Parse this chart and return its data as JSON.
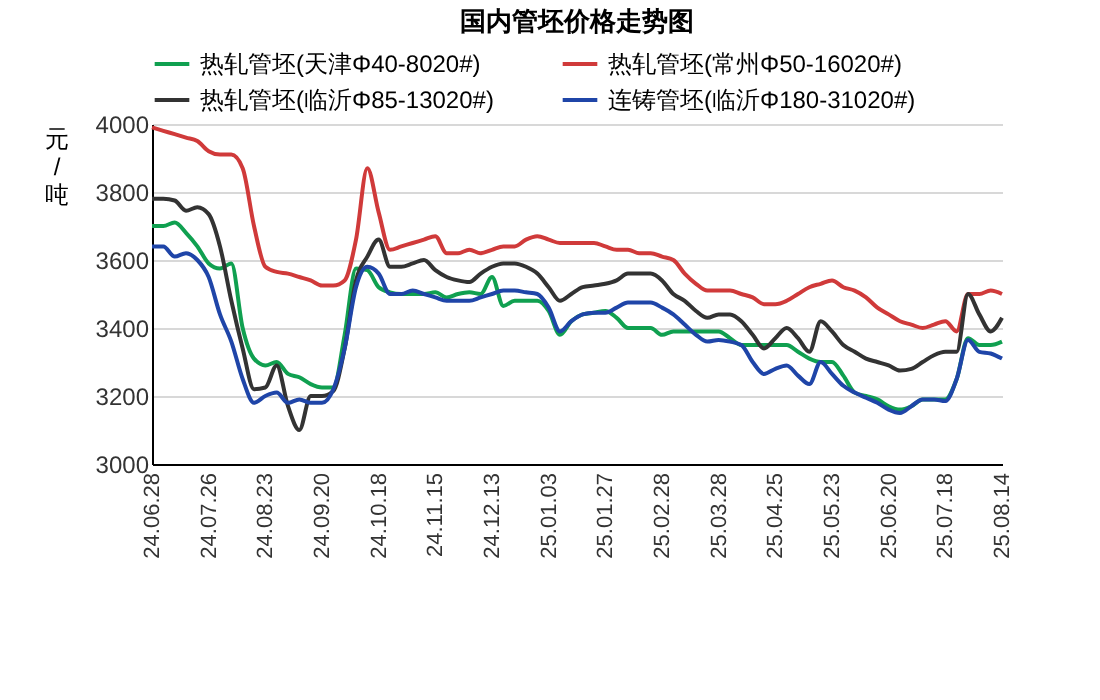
{
  "chart_data": {
    "type": "line",
    "title": "国内管坯价格走势图",
    "ylabel": "元/吨",
    "categories": [
      "24.06.28",
      null,
      null,
      null,
      null,
      "24.07.26",
      null,
      null,
      null,
      null,
      "24.08.23",
      null,
      null,
      null,
      null,
      "24.09.20",
      null,
      null,
      null,
      null,
      "24.10.18",
      null,
      null,
      null,
      null,
      "24.11.15",
      null,
      null,
      null,
      null,
      "24.12.13",
      null,
      null,
      null,
      null,
      "25.01.03",
      null,
      null,
      null,
      null,
      "25.01.27",
      null,
      null,
      null,
      null,
      "25.02.28",
      null,
      null,
      null,
      null,
      "25.03.28",
      null,
      null,
      null,
      null,
      "25.04.25",
      null,
      null,
      null,
      null,
      "25.05.23",
      null,
      null,
      null,
      null,
      "25.06.20",
      null,
      null,
      null,
      null,
      "25.07.18",
      null,
      null,
      null,
      null,
      "25.08.14"
    ],
    "series": [
      {
        "name": "热轧管坯(天津Φ40-8020#)",
        "color": "#10a050",
        "values": [
          3700,
          3700,
          3710,
          3680,
          3640,
          3590,
          3575,
          3590,
          3400,
          3310,
          3290,
          3300,
          3265,
          3255,
          3235,
          3225,
          3225,
          3380,
          3575,
          3570,
          3520,
          3505,
          3500,
          3500,
          3500,
          3505,
          3490,
          3500,
          3505,
          3500,
          3550,
          3465,
          3480,
          3480,
          3480,
          3450,
          3380,
          3420,
          3440,
          3445,
          3450,
          3430,
          3400,
          3400,
          3400,
          3380,
          3390,
          3390,
          3390,
          3390,
          3390,
          3370,
          3350,
          3350,
          3350,
          3350,
          3350,
          3330,
          3310,
          3300,
          3300,
          3260,
          3210,
          3200,
          3190,
          3170,
          3160,
          3170,
          3190,
          3190,
          3190,
          3250,
          3370,
          3350,
          3350,
          3360
        ]
      },
      {
        "name": "热轧管坯(常州Φ50-16020#)",
        "color": "#d03a3a",
        "values": [
          3990,
          3980,
          3970,
          3960,
          3950,
          3920,
          3910,
          3910,
          3870,
          3700,
          3580,
          3565,
          3560,
          3550,
          3540,
          3525,
          3525,
          3540,
          3660,
          3870,
          3740,
          3630,
          3640,
          3650,
          3660,
          3670,
          3620,
          3620,
          3630,
          3620,
          3630,
          3640,
          3640,
          3660,
          3670,
          3660,
          3650,
          3650,
          3650,
          3650,
          3640,
          3630,
          3630,
          3620,
          3620,
          3610,
          3600,
          3560,
          3530,
          3510,
          3510,
          3510,
          3500,
          3490,
          3470,
          3470,
          3480,
          3500,
          3520,
          3530,
          3540,
          3520,
          3510,
          3490,
          3460,
          3440,
          3420,
          3410,
          3400,
          3410,
          3420,
          3390,
          3500,
          3500,
          3510,
          3500
        ]
      },
      {
        "name": "热轧管坯(临沂Φ85-13020#)",
        "color": "#333333",
        "values": [
          3780,
          3780,
          3775,
          3745,
          3755,
          3735,
          3640,
          3480,
          3340,
          3220,
          3225,
          3290,
          3170,
          3100,
          3200,
          3200,
          3215,
          3340,
          3540,
          3610,
          3660,
          3580,
          3580,
          3590,
          3600,
          3570,
          3550,
          3540,
          3535,
          3560,
          3580,
          3590,
          3590,
          3580,
          3560,
          3520,
          3480,
          3500,
          3520,
          3525,
          3530,
          3540,
          3560,
          3560,
          3560,
          3540,
          3500,
          3480,
          3450,
          3430,
          3440,
          3440,
          3420,
          3380,
          3340,
          3370,
          3400,
          3370,
          3330,
          3420,
          3390,
          3350,
          3330,
          3310,
          3300,
          3290,
          3275,
          3280,
          3300,
          3320,
          3330,
          3330,
          3500,
          3440,
          3390,
          3430
        ]
      },
      {
        "name": "连铸管坯(临沂Φ180-31020#)",
        "color": "#1f45a8",
        "values": [
          3640,
          3640,
          3610,
          3620,
          3600,
          3550,
          3440,
          3360,
          3250,
          3180,
          3200,
          3210,
          3180,
          3190,
          3180,
          3180,
          3220,
          3340,
          3520,
          3580,
          3560,
          3500,
          3500,
          3510,
          3500,
          3490,
          3480,
          3480,
          3480,
          3490,
          3500,
          3510,
          3510,
          3505,
          3500,
          3460,
          3390,
          3420,
          3440,
          3445,
          3445,
          3460,
          3475,
          3475,
          3475,
          3460,
          3440,
          3410,
          3380,
          3360,
          3365,
          3360,
          3350,
          3300,
          3265,
          3280,
          3290,
          3260,
          3235,
          3300,
          3265,
          3230,
          3210,
          3195,
          3180,
          3160,
          3150,
          3170,
          3190,
          3190,
          3185,
          3250,
          3365,
          3330,
          3325,
          3310
        ]
      }
    ],
    "ylim": [
      3000,
      4000
    ],
    "yticks": [
      3000,
      3200,
      3400,
      3600,
      3800,
      4000
    ],
    "grid": "y",
    "legend": "top",
    "marker": "none",
    "line_style": "solid"
  }
}
